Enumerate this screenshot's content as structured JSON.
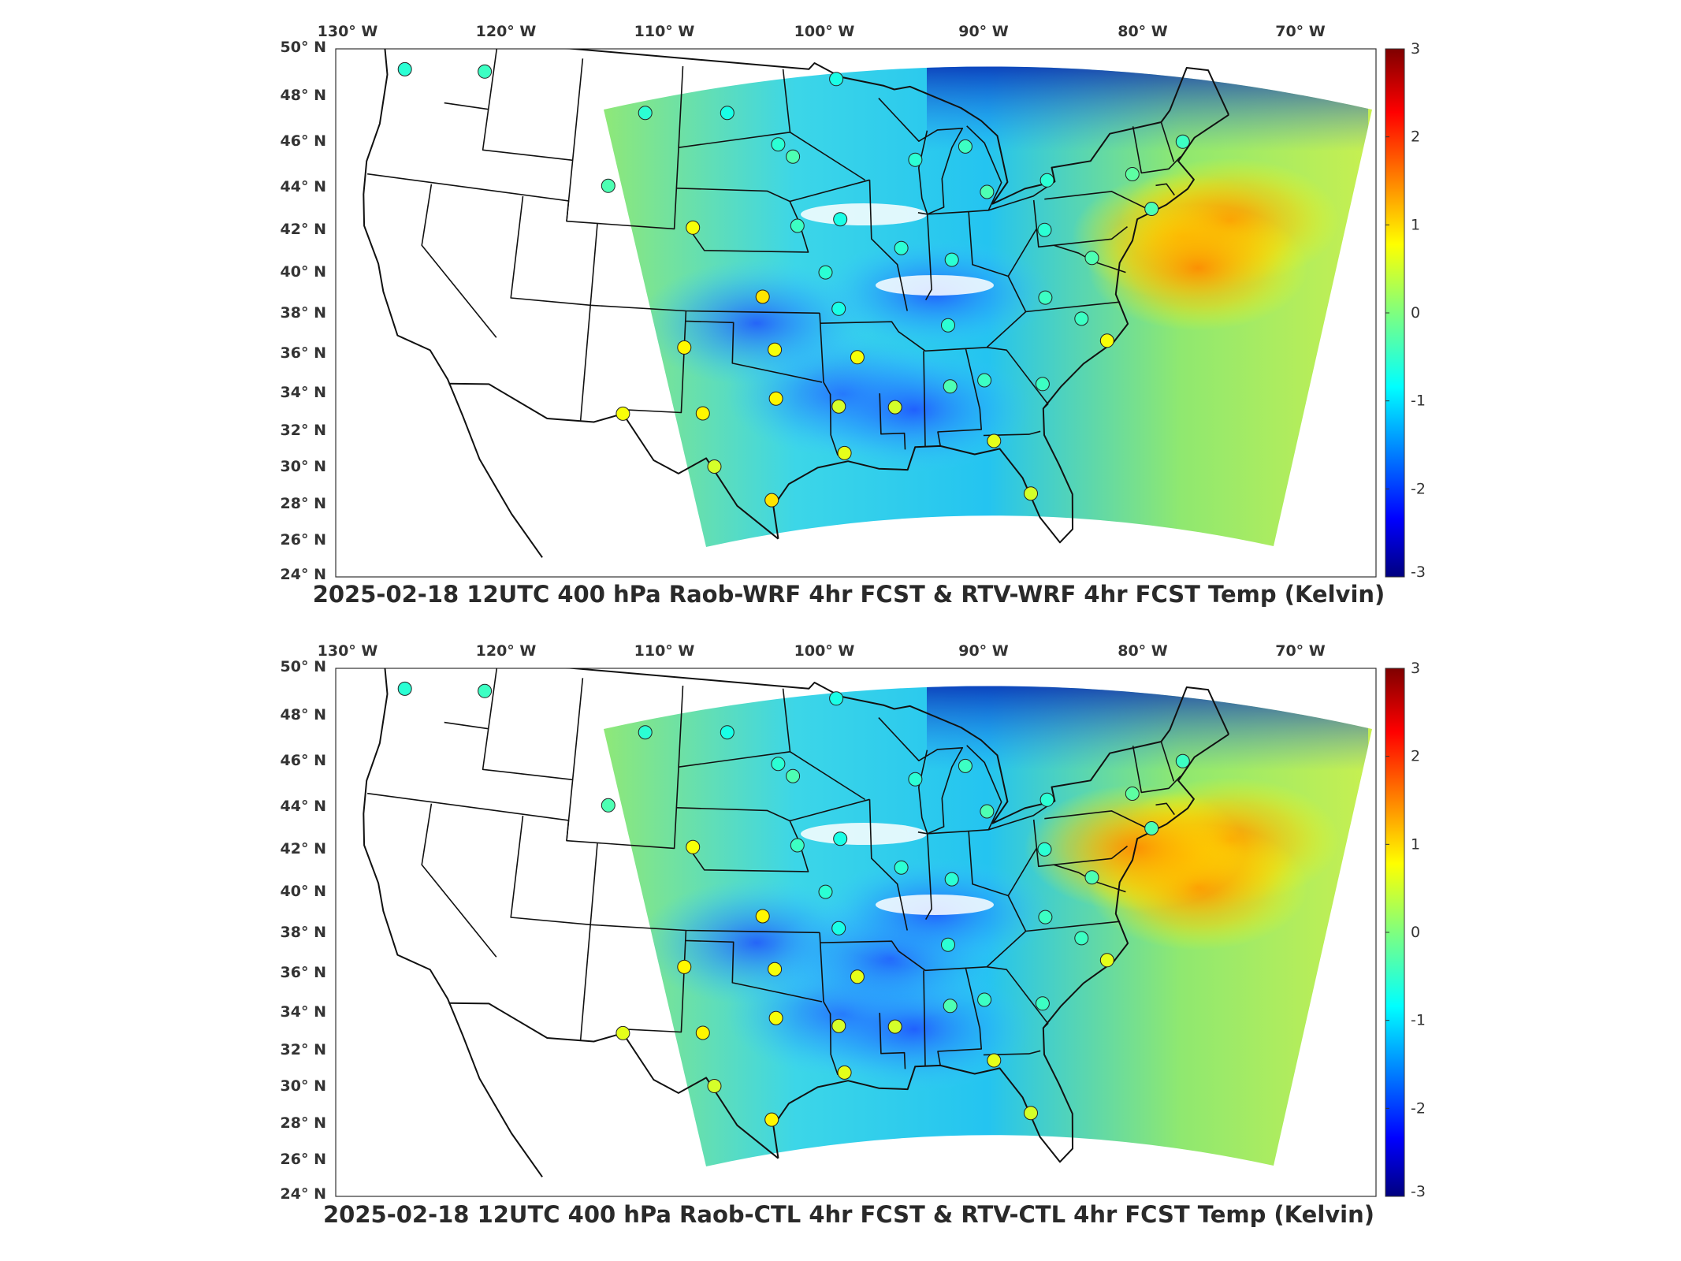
{
  "panels": [
    {
      "title": "2025-02-18 12UTC 400 hPa Raob-WRF 4hr FCST & RTV-WRF 4hr FCST Temp (Kelvin)",
      "warm_spots": [
        [
          1500,
          300
        ],
        [
          1560,
          280
        ],
        [
          1520,
          340
        ]
      ],
      "cool_spots": [
        [
          1070,
          500
        ],
        [
          1160,
          520
        ],
        [
          960,
          410
        ]
      ],
      "stations": [
        {
          "lon": -123.0,
          "lat": 47.3,
          "v": -0.5
        },
        {
          "lon": -117.6,
          "lat": 47.8,
          "v": -0.4
        },
        {
          "lon": -106.4,
          "lat": 46.6,
          "v": -0.5
        },
        {
          "lon": -100.8,
          "lat": 46.8,
          "v": -0.6
        },
        {
          "lon": -97.3,
          "lat": 45.3,
          "v": -0.5
        },
        {
          "lon": -96.3,
          "lat": 44.7,
          "v": -0.3
        },
        {
          "lon": -93.3,
          "lat": 48.5,
          "v": -0.6
        },
        {
          "lon": -88.1,
          "lat": 44.4,
          "v": -0.5
        },
        {
          "lon": -84.7,
          "lat": 44.9,
          "v": -0.4
        },
        {
          "lon": -83.5,
          "lat": 42.6,
          "v": -0.3
        },
        {
          "lon": -79.5,
          "lat": 42.9,
          "v": -0.5
        },
        {
          "lon": -73.9,
          "lat": 42.7,
          "v": -0.2
        },
        {
          "lon": -70.3,
          "lat": 43.9,
          "v": -0.4
        },
        {
          "lon": -73.0,
          "lat": 40.9,
          "v": -0.3
        },
        {
          "lon": -108.5,
          "lat": 42.9,
          "v": -0.3
        },
        {
          "lon": -102.8,
          "lat": 41.1,
          "v": 0.7
        },
        {
          "lon": -96.0,
          "lat": 41.3,
          "v": -0.4
        },
        {
          "lon": -93.2,
          "lat": 41.6,
          "v": -0.6
        },
        {
          "lon": -89.3,
          "lat": 40.1,
          "v": -0.5
        },
        {
          "lon": -86.1,
          "lat": 39.4,
          "v": -0.5
        },
        {
          "lon": -80.0,
          "lat": 40.5,
          "v": -0.5
        },
        {
          "lon": -77.2,
          "lat": 38.9,
          "v": -0.3
        },
        {
          "lon": -94.2,
          "lat": 39.0,
          "v": -0.5
        },
        {
          "lon": -98.2,
          "lat": 37.8,
          "v": 0.9
        },
        {
          "lon": -93.4,
          "lat": 37.2,
          "v": -0.6
        },
        {
          "lon": -86.6,
          "lat": 36.2,
          "v": -0.5
        },
        {
          "lon": -80.4,
          "lat": 37.2,
          "v": -0.4
        },
        {
          "lon": -78.3,
          "lat": 36.0,
          "v": -0.4
        },
        {
          "lon": -76.9,
          "lat": 34.8,
          "v": 0.7
        },
        {
          "lon": -81.1,
          "lat": 33.0,
          "v": -0.4
        },
        {
          "lon": -84.6,
          "lat": 33.4,
          "v": -0.4
        },
        {
          "lon": -86.7,
          "lat": 33.2,
          "v": -0.3
        },
        {
          "lon": -90.1,
          "lat": 32.3,
          "v": 0.5
        },
        {
          "lon": -92.3,
          "lat": 34.8,
          "v": 0.7
        },
        {
          "lon": -97.4,
          "lat": 35.2,
          "v": 0.7
        },
        {
          "lon": -103.0,
          "lat": 35.2,
          "v": 0.8
        },
        {
          "lon": -101.7,
          "lat": 32.0,
          "v": 0.8
        },
        {
          "lon": -97.3,
          "lat": 32.8,
          "v": 0.8
        },
        {
          "lon": -93.5,
          "lat": 32.4,
          "v": 0.5
        },
        {
          "lon": -106.5,
          "lat": 31.8,
          "v": 0.7
        },
        {
          "lon": -100.9,
          "lat": 29.4,
          "v": 0.5
        },
        {
          "lon": -97.5,
          "lat": 27.8,
          "v": 0.9
        },
        {
          "lon": -93.2,
          "lat": 30.1,
          "v": 0.6
        },
        {
          "lon": -84.3,
          "lat": 30.4,
          "v": 0.6
        },
        {
          "lon": -82.4,
          "lat": 27.7,
          "v": 0.5
        }
      ]
    },
    {
      "title": "2025-02-18 12UTC 400 hPa Raob-CTL 4hr FCST & RTV-CTL 4hr FCST Temp (Kelvin)",
      "warm_spots": [
        [
          1500,
          300
        ],
        [
          1560,
          280
        ],
        [
          1520,
          340
        ],
        [
          1440,
          290
        ]
      ],
      "cool_spots": [
        [
          1070,
          500
        ],
        [
          1160,
          520
        ],
        [
          960,
          410
        ],
        [
          1130,
          430
        ]
      ],
      "stations": [
        {
          "lon": -123.0,
          "lat": 47.3,
          "v": -0.5
        },
        {
          "lon": -117.6,
          "lat": 47.8,
          "v": -0.4
        },
        {
          "lon": -106.4,
          "lat": 46.6,
          "v": -0.5
        },
        {
          "lon": -100.8,
          "lat": 46.8,
          "v": -0.6
        },
        {
          "lon": -97.3,
          "lat": 45.3,
          "v": -0.5
        },
        {
          "lon": -96.3,
          "lat": 44.7,
          "v": -0.3
        },
        {
          "lon": -93.3,
          "lat": 48.5,
          "v": -0.6
        },
        {
          "lon": -88.1,
          "lat": 44.4,
          "v": -0.5
        },
        {
          "lon": -84.7,
          "lat": 44.9,
          "v": -0.4
        },
        {
          "lon": -83.5,
          "lat": 42.6,
          "v": -0.3
        },
        {
          "lon": -79.5,
          "lat": 42.9,
          "v": -0.5
        },
        {
          "lon": -73.9,
          "lat": 42.7,
          "v": -0.2
        },
        {
          "lon": -70.3,
          "lat": 43.9,
          "v": -0.4
        },
        {
          "lon": -73.0,
          "lat": 40.9,
          "v": -0.3
        },
        {
          "lon": -108.5,
          "lat": 42.9,
          "v": -0.3
        },
        {
          "lon": -102.8,
          "lat": 41.1,
          "v": 0.7
        },
        {
          "lon": -96.0,
          "lat": 41.3,
          "v": -0.4
        },
        {
          "lon": -93.2,
          "lat": 41.6,
          "v": -0.6
        },
        {
          "lon": -89.3,
          "lat": 40.1,
          "v": -0.5
        },
        {
          "lon": -86.1,
          "lat": 39.4,
          "v": -0.5
        },
        {
          "lon": -80.0,
          "lat": 40.5,
          "v": -0.5
        },
        {
          "lon": -77.2,
          "lat": 38.9,
          "v": -0.3
        },
        {
          "lon": -94.2,
          "lat": 39.0,
          "v": -0.5
        },
        {
          "lon": -98.2,
          "lat": 37.8,
          "v": 0.8
        },
        {
          "lon": -93.4,
          "lat": 37.2,
          "v": -0.6
        },
        {
          "lon": -86.6,
          "lat": 36.2,
          "v": -0.5
        },
        {
          "lon": -80.4,
          "lat": 37.2,
          "v": -0.4
        },
        {
          "lon": -78.3,
          "lat": 36.0,
          "v": -0.4
        },
        {
          "lon": -76.9,
          "lat": 34.8,
          "v": 0.6
        },
        {
          "lon": -81.1,
          "lat": 33.0,
          "v": -0.4
        },
        {
          "lon": -84.6,
          "lat": 33.4,
          "v": -0.4
        },
        {
          "lon": -86.7,
          "lat": 33.2,
          "v": -0.3
        },
        {
          "lon": -90.1,
          "lat": 32.3,
          "v": 0.5
        },
        {
          "lon": -92.3,
          "lat": 34.8,
          "v": 0.6
        },
        {
          "lon": -97.4,
          "lat": 35.2,
          "v": 0.7
        },
        {
          "lon": -103.0,
          "lat": 35.2,
          "v": 0.8
        },
        {
          "lon": -101.7,
          "lat": 32.0,
          "v": 0.8
        },
        {
          "lon": -97.3,
          "lat": 32.8,
          "v": 0.7
        },
        {
          "lon": -93.5,
          "lat": 32.4,
          "v": 0.5
        },
        {
          "lon": -106.5,
          "lat": 31.8,
          "v": 0.6
        },
        {
          "lon": -100.9,
          "lat": 29.4,
          "v": 0.5
        },
        {
          "lon": -97.5,
          "lat": 27.8,
          "v": 0.8
        },
        {
          "lon": -93.2,
          "lat": 30.1,
          "v": 0.6
        },
        {
          "lon": -84.3,
          "lat": 30.4,
          "v": 0.6
        },
        {
          "lon": -82.4,
          "lat": 27.7,
          "v": 0.5
        }
      ]
    }
  ],
  "lon_labels": [
    "130° W",
    "120° W",
    "110° W",
    "100° W",
    "90° W",
    "80° W",
    "70° W"
  ],
  "lat_labels": [
    "50° N",
    "48° N",
    "46° N",
    "44° N",
    "42° N",
    "40° N",
    "38° N",
    "36° N",
    "34° N",
    "32° N",
    "30° N",
    "28° N",
    "26° N",
    "24° N"
  ],
  "colorbar": {
    "ticks": [
      "3",
      "2",
      "1",
      "0",
      "-1",
      "-2",
      "-3"
    ],
    "min": -3,
    "max": 3,
    "colormap": "jet"
  }
}
